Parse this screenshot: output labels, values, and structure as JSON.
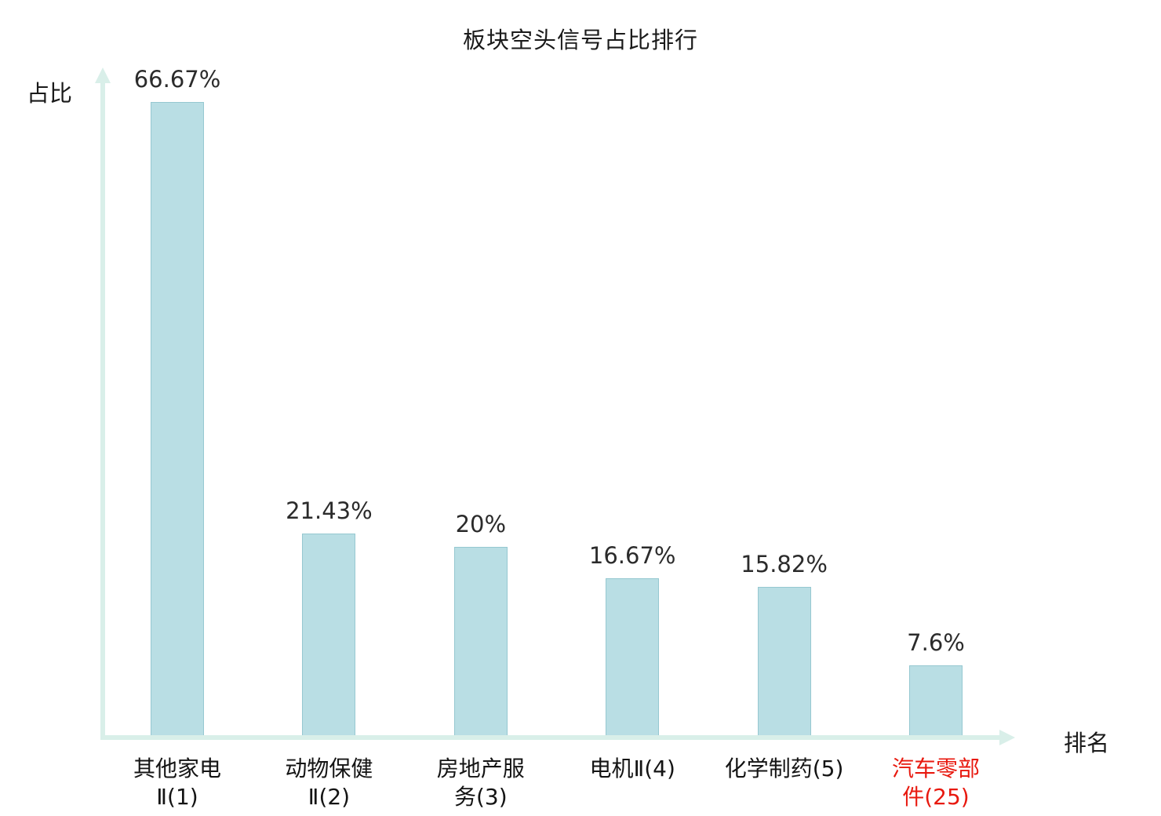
{
  "chart_data": {
    "type": "bar",
    "title": "板块空头信号占比排行",
    "xlabel": "排名",
    "ylabel": "占比",
    "ylim": [
      0,
      70
    ],
    "grid": false,
    "legend": "none",
    "bar_color": "#b9dee4",
    "bar_border_color": "#96c8d1",
    "axis_color": "#d9efe9",
    "text_color": "#1a1a1a",
    "highlight_color": "#e8190f",
    "categories": [
      "其他家电Ⅱ(1)",
      "动物保健Ⅱ(2)",
      "房地产服务(3)",
      "电机Ⅱ(4)",
      "化学制药(5)",
      "汽车零部件(25)"
    ],
    "values": [
      66.67,
      21.43,
      20,
      16.67,
      15.82,
      7.6
    ],
    "items": [
      {
        "label_lines": [
          "其他家电",
          "Ⅱ(1)"
        ],
        "value": 66.67,
        "value_label": "66.67%",
        "highlight": false
      },
      {
        "label_lines": [
          "动物保健",
          "Ⅱ(2)"
        ],
        "value": 21.43,
        "value_label": "21.43%",
        "highlight": false
      },
      {
        "label_lines": [
          "房地产服",
          "务(3)"
        ],
        "value": 20,
        "value_label": "20%",
        "highlight": false
      },
      {
        "label_lines": [
          "电机Ⅱ(4)"
        ],
        "value": 16.67,
        "value_label": "16.67%",
        "highlight": false
      },
      {
        "label_lines": [
          "化学制药(5)"
        ],
        "value": 15.82,
        "value_label": "15.82%",
        "highlight": false
      },
      {
        "label_lines": [
          "汽车零部",
          "件(25)"
        ],
        "value": 7.6,
        "value_label": "7.6%",
        "highlight": true
      }
    ]
  }
}
